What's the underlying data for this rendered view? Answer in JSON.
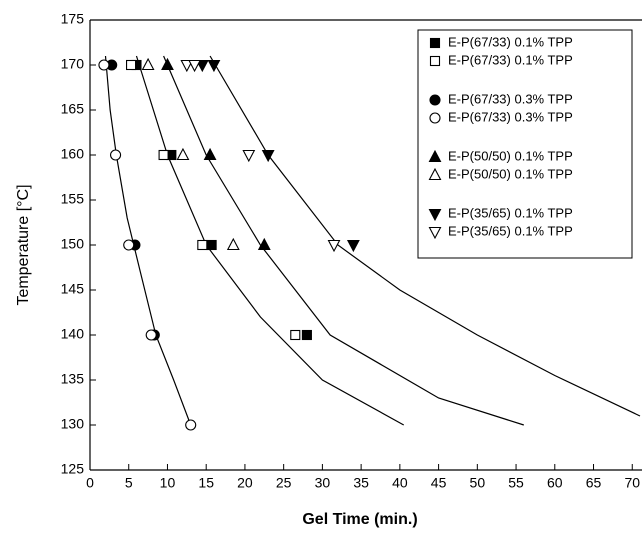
{
  "chart_data": {
    "type": "scatter",
    "xlabel": "Gel Time (min.)",
    "ylabel": "Temperature [°C]",
    "xlim": [
      0,
      71
    ],
    "ylim": [
      125,
      175
    ],
    "xticks": [
      0,
      5,
      10,
      15,
      20,
      25,
      30,
      35,
      40,
      45,
      50,
      55,
      60,
      65,
      70
    ],
    "yticks": [
      125,
      130,
      135,
      140,
      145,
      150,
      155,
      160,
      165,
      170,
      175
    ],
    "legend": "top-right",
    "series": [
      {
        "name": "E-P(67/33) 0.1% TPP",
        "marker": "square",
        "filled": true,
        "color": "#000000",
        "x": [
          6,
          10.5,
          15.7,
          28
        ],
        "values": [
          170,
          160,
          150,
          140
        ]
      },
      {
        "name": "E-P(67/33) 0.1% TPP",
        "marker": "square",
        "filled": false,
        "color": "#000000",
        "x": [
          5.3,
          9.5,
          14.5,
          26.5
        ],
        "values": [
          170,
          160,
          150,
          140
        ]
      },
      {
        "name": "E-P(67/33) 0.3% TPP",
        "marker": "circle",
        "filled": true,
        "color": "#000000",
        "x": [
          2.8,
          5.8,
          8.3
        ],
        "values": [
          170,
          150,
          140
        ]
      },
      {
        "name": "E-P(67/33) 0.3% TPP",
        "marker": "circle",
        "filled": false,
        "color": "#000000",
        "x": [
          1.8,
          3.3,
          5.0,
          7.9,
          13.0
        ],
        "values": [
          170,
          160,
          150,
          140,
          130
        ]
      },
      {
        "name": "E-P(50/50) 0.1% TPP",
        "marker": "triangle-up",
        "filled": true,
        "color": "#000000",
        "x": [
          10,
          15.5,
          22.5
        ],
        "values": [
          170,
          160,
          150
        ]
      },
      {
        "name": "E-P(50/50) 0.1% TPP",
        "marker": "triangle-up",
        "filled": false,
        "color": "#000000",
        "x": [
          7.5,
          12,
          18.5
        ],
        "values": [
          170,
          160,
          150
        ]
      },
      {
        "name": "E-P(35/65) 0.1% TPP",
        "marker": "triangle-down",
        "filled": true,
        "color": "#000000",
        "x": [
          14.5,
          16,
          23,
          34
        ],
        "values": [
          170,
          170,
          160,
          150
        ]
      },
      {
        "name": "E-P(35/65) 0.1% TPP",
        "marker": "triangle-down",
        "filled": false,
        "color": "#000000",
        "x": [
          12.5,
          13.5,
          20.5,
          31.5
        ],
        "values": [
          170,
          170,
          160,
          150
        ]
      }
    ],
    "fit_lines": [
      {
        "color": "#000000",
        "x": [
          2,
          2.6,
          3.4,
          4.8,
          6.5,
          8.5,
          10.8,
          13
        ],
        "values": [
          171,
          165,
          160,
          153,
          147,
          140,
          135,
          130
        ]
      },
      {
        "color": "#000000",
        "x": [
          6,
          10,
          15,
          22,
          30,
          40.5
        ],
        "values": [
          171,
          160,
          150,
          142,
          135,
          130
        ]
      },
      {
        "color": "#000000",
        "x": [
          9.5,
          15,
          22,
          31,
          45,
          56
        ],
        "values": [
          171,
          160,
          150,
          140,
          133,
          130
        ]
      },
      {
        "color": "#000000",
        "x": [
          15.5,
          23,
          32,
          40,
          50,
          60,
          71
        ],
        "values": [
          171,
          160,
          150,
          145,
          140,
          135.5,
          131
        ]
      }
    ]
  }
}
